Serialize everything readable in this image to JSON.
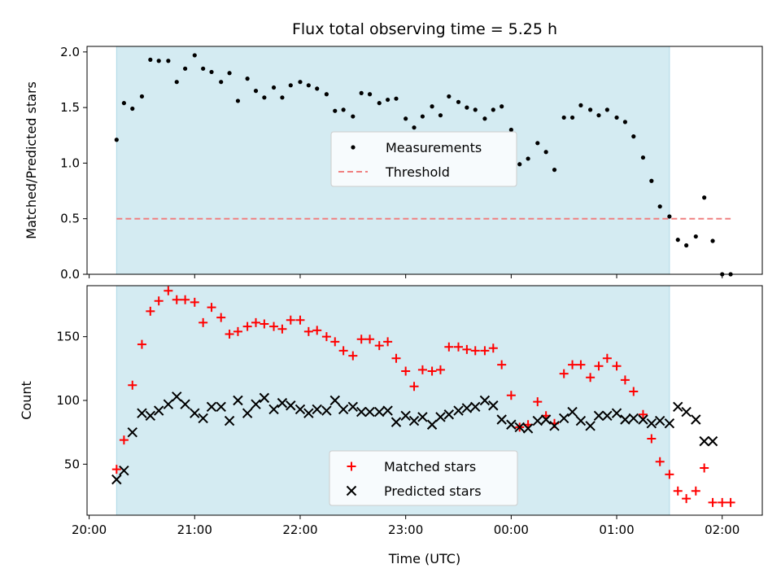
{
  "chart_data": {
    "type": "scatter",
    "title": "Flux total observing time = 5.25 h",
    "xlabel": "Time (UTC)",
    "x_tick_labels": [
      "20:00",
      "21:00",
      "22:00",
      "23:00",
      "00:00",
      "01:00",
      "02:00"
    ],
    "x_tick_hours": [
      0,
      1,
      2,
      3,
      4,
      5,
      6
    ],
    "x_axis_origin": "20:00",
    "observing_window_hours": [
      0.26,
      5.5
    ],
    "observing_window_color": "#d4ebf2",
    "top_panel": {
      "ylabel": "Matched/Predicted stars",
      "xlim_hours": [
        -0.02,
        6.38
      ],
      "ylim": [
        0,
        2.05
      ],
      "y_ticks": [
        0.0,
        0.5,
        1.0,
        1.5,
        2.0
      ],
      "y_tick_labels": [
        "0.0",
        "0.5",
        "1.0",
        "1.5",
        "2.0"
      ],
      "series": [
        {
          "name": "Measurements",
          "marker": "dot",
          "color": "#000000",
          "points": [
            [
              0.26,
              1.21
            ],
            [
              0.33,
              1.54
            ],
            [
              0.41,
              1.49
            ],
            [
              0.5,
              1.6
            ],
            [
              0.58,
              1.93
            ],
            [
              0.66,
              1.92
            ],
            [
              0.75,
              1.92
            ],
            [
              0.83,
              1.73
            ],
            [
              0.91,
              1.85
            ],
            [
              1.0,
              1.97
            ],
            [
              1.08,
              1.85
            ],
            [
              1.16,
              1.82
            ],
            [
              1.25,
              1.73
            ],
            [
              1.33,
              1.81
            ],
            [
              1.41,
              1.56
            ],
            [
              1.5,
              1.76
            ],
            [
              1.58,
              1.65
            ],
            [
              1.66,
              1.59
            ],
            [
              1.75,
              1.68
            ],
            [
              1.83,
              1.59
            ],
            [
              1.91,
              1.7
            ],
            [
              2.0,
              1.73
            ],
            [
              2.08,
              1.7
            ],
            [
              2.16,
              1.67
            ],
            [
              2.25,
              1.62
            ],
            [
              2.33,
              1.47
            ],
            [
              2.41,
              1.48
            ],
            [
              2.5,
              1.42
            ],
            [
              2.58,
              1.63
            ],
            [
              2.66,
              1.62
            ],
            [
              2.75,
              1.54
            ],
            [
              2.83,
              1.57
            ],
            [
              2.91,
              1.58
            ],
            [
              3.0,
              1.4
            ],
            [
              3.08,
              1.32
            ],
            [
              3.16,
              1.42
            ],
            [
              3.25,
              1.51
            ],
            [
              3.33,
              1.43
            ],
            [
              3.41,
              1.6
            ],
            [
              3.5,
              1.55
            ],
            [
              3.58,
              1.5
            ],
            [
              3.66,
              1.48
            ],
            [
              3.75,
              1.4
            ],
            [
              3.83,
              1.48
            ],
            [
              3.91,
              1.51
            ],
            [
              4.0,
              1.3
            ],
            [
              4.08,
              0.99
            ],
            [
              4.16,
              1.04
            ],
            [
              4.25,
              1.18
            ],
            [
              4.33,
              1.1
            ],
            [
              4.41,
              0.94
            ],
            [
              4.5,
              1.41
            ],
            [
              4.58,
              1.41
            ],
            [
              4.66,
              1.52
            ],
            [
              4.75,
              1.48
            ],
            [
              4.83,
              1.43
            ],
            [
              4.91,
              1.48
            ],
            [
              5.0,
              1.41
            ],
            [
              5.08,
              1.37
            ],
            [
              5.16,
              1.24
            ],
            [
              5.25,
              1.05
            ],
            [
              5.33,
              0.84
            ],
            [
              5.41,
              0.61
            ],
            [
              5.5,
              0.52
            ],
            [
              5.58,
              0.31
            ],
            [
              5.66,
              0.26
            ],
            [
              5.75,
              0.34
            ],
            [
              5.83,
              0.69
            ],
            [
              5.91,
              0.3
            ],
            [
              6.0,
              0.0
            ],
            [
              6.08,
              0.0
            ]
          ]
        },
        {
          "name": "Threshold",
          "marker": "dashed-line",
          "color": "#f08080",
          "points": [
            [
              0.26,
              0.5
            ],
            [
              6.08,
              0.5
            ]
          ]
        }
      ],
      "legend": {
        "placement": "center",
        "entries": [
          "Measurements",
          "Threshold"
        ]
      }
    },
    "bottom_panel": {
      "ylabel": "Count",
      "xlim_hours": [
        -0.02,
        6.38
      ],
      "ylim": [
        10,
        190
      ],
      "y_ticks": [
        50,
        100,
        150
      ],
      "y_tick_labels": [
        "50",
        "100",
        "150"
      ],
      "series": [
        {
          "name": "Matched stars",
          "marker": "plus",
          "color": "#ff0000",
          "points": [
            [
              0.26,
              46
            ],
            [
              0.33,
              69
            ],
            [
              0.41,
              112
            ],
            [
              0.5,
              144
            ],
            [
              0.58,
              170
            ],
            [
              0.66,
              178
            ],
            [
              0.75,
              186
            ],
            [
              0.83,
              179
            ],
            [
              0.91,
              179
            ],
            [
              1.0,
              177
            ],
            [
              1.08,
              161
            ],
            [
              1.16,
              173
            ],
            [
              1.25,
              165
            ],
            [
              1.33,
              152
            ],
            [
              1.41,
              154
            ],
            [
              1.5,
              158
            ],
            [
              1.58,
              161
            ],
            [
              1.66,
              160
            ],
            [
              1.75,
              158
            ],
            [
              1.83,
              156
            ],
            [
              1.91,
              163
            ],
            [
              2.0,
              163
            ],
            [
              2.08,
              154
            ],
            [
              2.16,
              155
            ],
            [
              2.25,
              150
            ],
            [
              2.33,
              146
            ],
            [
              2.41,
              139
            ],
            [
              2.5,
              135
            ],
            [
              2.58,
              148
            ],
            [
              2.66,
              148
            ],
            [
              2.75,
              143
            ],
            [
              2.83,
              146
            ],
            [
              2.91,
              133
            ],
            [
              3.0,
              123
            ],
            [
              3.08,
              111
            ],
            [
              3.16,
              124
            ],
            [
              3.25,
              123
            ],
            [
              3.33,
              124
            ],
            [
              3.41,
              142
            ],
            [
              3.5,
              142
            ],
            [
              3.58,
              140
            ],
            [
              3.66,
              139
            ],
            [
              3.75,
              139
            ],
            [
              3.83,
              141
            ],
            [
              3.91,
              128
            ],
            [
              4.0,
              104
            ],
            [
              4.08,
              79
            ],
            [
              4.16,
              81
            ],
            [
              4.25,
              99
            ],
            [
              4.33,
              88
            ],
            [
              4.41,
              82
            ],
            [
              4.5,
              121
            ],
            [
              4.58,
              128
            ],
            [
              4.66,
              128
            ],
            [
              4.75,
              118
            ],
            [
              4.83,
              127
            ],
            [
              4.91,
              133
            ],
            [
              5.0,
              127
            ],
            [
              5.08,
              116
            ],
            [
              5.16,
              107
            ],
            [
              5.25,
              89
            ],
            [
              5.33,
              70
            ],
            [
              5.41,
              52
            ],
            [
              5.5,
              42
            ],
            [
              5.58,
              29
            ],
            [
              5.66,
              23
            ],
            [
              5.75,
              29
            ],
            [
              5.83,
              47
            ],
            [
              5.91,
              20
            ],
            [
              6.0,
              20
            ],
            [
              6.08,
              20
            ]
          ]
        },
        {
          "name": "Predicted stars",
          "marker": "x",
          "color": "#000000",
          "points": [
            [
              0.26,
              38
            ],
            [
              0.33,
              45
            ],
            [
              0.41,
              75
            ],
            [
              0.5,
              90
            ],
            [
              0.58,
              88
            ],
            [
              0.66,
              92
            ],
            [
              0.75,
              97
            ],
            [
              0.83,
              103
            ],
            [
              0.91,
              97
            ],
            [
              1.0,
              90
            ],
            [
              1.08,
              86
            ],
            [
              1.16,
              95
            ],
            [
              1.25,
              95
            ],
            [
              1.33,
              84
            ],
            [
              1.41,
              100
            ],
            [
              1.5,
              90
            ],
            [
              1.58,
              97
            ],
            [
              1.66,
              102
            ],
            [
              1.75,
              93
            ],
            [
              1.83,
              98
            ],
            [
              1.91,
              96
            ],
            [
              2.0,
              93
            ],
            [
              2.08,
              90
            ],
            [
              2.16,
              93
            ],
            [
              2.25,
              92
            ],
            [
              2.33,
              100
            ],
            [
              2.41,
              93
            ],
            [
              2.5,
              95
            ],
            [
              2.58,
              91
            ],
            [
              2.66,
              91
            ],
            [
              2.75,
              91
            ],
            [
              2.83,
              92
            ],
            [
              2.91,
              83
            ],
            [
              3.0,
              88
            ],
            [
              3.08,
              84
            ],
            [
              3.16,
              87
            ],
            [
              3.25,
              81
            ],
            [
              3.33,
              87
            ],
            [
              3.41,
              89
            ],
            [
              3.5,
              92
            ],
            [
              3.58,
              94
            ],
            [
              3.66,
              95
            ],
            [
              3.75,
              100
            ],
            [
              3.83,
              96
            ],
            [
              3.91,
              85
            ],
            [
              4.0,
              81
            ],
            [
              4.08,
              79
            ],
            [
              4.16,
              78
            ],
            [
              4.25,
              84
            ],
            [
              4.33,
              85
            ],
            [
              4.41,
              80
            ],
            [
              4.5,
              86
            ],
            [
              4.58,
              91
            ],
            [
              4.66,
              84
            ],
            [
              4.75,
              80
            ],
            [
              4.83,
              88
            ],
            [
              4.91,
              88
            ],
            [
              5.0,
              90
            ],
            [
              5.08,
              85
            ],
            [
              5.16,
              86
            ],
            [
              5.25,
              85
            ],
            [
              5.33,
              82
            ],
            [
              5.41,
              84
            ],
            [
              5.5,
              82
            ],
            [
              5.58,
              95
            ],
            [
              5.66,
              91
            ],
            [
              5.75,
              85
            ],
            [
              5.83,
              68
            ],
            [
              5.91,
              68
            ]
          ]
        }
      ],
      "legend": {
        "placement": "lower center",
        "entries": [
          "Matched stars",
          "Predicted stars"
        ]
      }
    }
  }
}
